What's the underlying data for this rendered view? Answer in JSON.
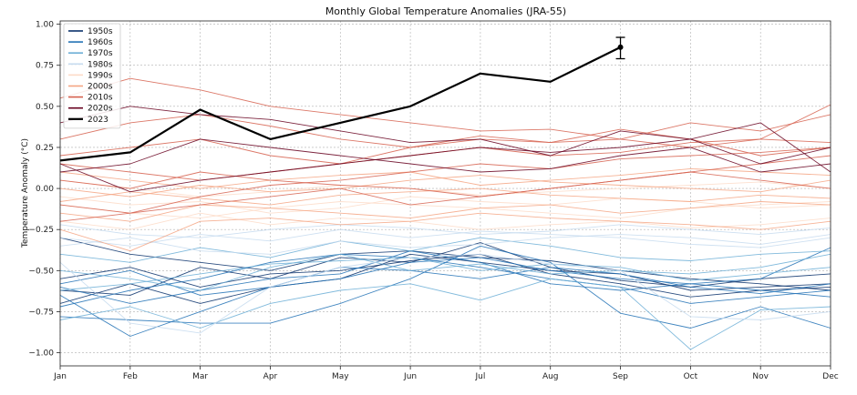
{
  "chart_data": {
    "type": "line",
    "title": "Monthly Global Temperature Anomalies (JRA-55)",
    "xlabel": "",
    "ylabel": "Temperature Anomaly (°C)",
    "categories": [
      "Jan",
      "Feb",
      "Mar",
      "Apr",
      "May",
      "Jun",
      "Jul",
      "Aug",
      "Sep",
      "Oct",
      "Nov",
      "Dec"
    ],
    "ylim": [
      -1.08,
      1.02
    ],
    "yticks": [
      -1.0,
      -0.75,
      -0.5,
      -0.25,
      0.0,
      0.25,
      0.5,
      0.75,
      1.0
    ],
    "ytick_labels": [
      "−1.00",
      "−0.75",
      "−0.50",
      "−0.25",
      "0.00",
      "0.25",
      "0.50",
      "0.75",
      "1.00"
    ],
    "grid": true,
    "legend_position": "top-left",
    "legend": [
      {
        "label": "1950s",
        "color": "#08306b"
      },
      {
        "label": "1960s",
        "color": "#2171b5"
      },
      {
        "label": "1970s",
        "color": "#6baed6"
      },
      {
        "label": "1980s",
        "color": "#c6dbef"
      },
      {
        "label": "1990s",
        "color": "#fddbc7"
      },
      {
        "label": "2000s",
        "color": "#f4a582"
      },
      {
        "label": "2010s",
        "color": "#d6604d"
      },
      {
        "label": "2020s",
        "color": "#67001f"
      },
      {
        "label": "2023",
        "color": "#000000"
      }
    ],
    "series": [
      {
        "name": "1950s",
        "color": "#08306b",
        "values": [
          -0.62,
          -0.65,
          -0.48,
          -0.55,
          -0.42,
          -0.45,
          -0.33,
          -0.48,
          -0.56,
          -0.6,
          -0.55,
          -0.52
        ]
      },
      {
        "name": "1950s",
        "color": "#08306b",
        "values": [
          -0.7,
          -0.58,
          -0.7,
          -0.6,
          -0.55,
          -0.4,
          -0.45,
          -0.5,
          -0.52,
          -0.62,
          -0.6,
          -0.58
        ]
      },
      {
        "name": "1950s",
        "color": "#08306b",
        "values": [
          -0.3,
          -0.4,
          -0.45,
          -0.5,
          -0.4,
          -0.38,
          -0.42,
          -0.44,
          -0.5,
          -0.55,
          -0.58,
          -0.62
        ]
      },
      {
        "name": "1950s",
        "color": "#08306b",
        "values": [
          -0.55,
          -0.48,
          -0.6,
          -0.52,
          -0.5,
          -0.44,
          -0.4,
          -0.52,
          -0.58,
          -0.66,
          -0.62,
          -0.6
        ]
      },
      {
        "name": "1960s",
        "color": "#2171b5",
        "values": [
          -0.65,
          -0.9,
          -0.75,
          -0.6,
          -0.55,
          -0.45,
          -0.42,
          -0.5,
          -0.55,
          -0.58,
          -0.62,
          -0.66
        ]
      },
      {
        "name": "1960s",
        "color": "#2171b5",
        "values": [
          -0.72,
          -0.62,
          -0.55,
          -0.45,
          -0.4,
          -0.42,
          -0.48,
          -0.55,
          -0.6,
          -0.7,
          -0.66,
          -0.62
        ]
      },
      {
        "name": "1960s",
        "color": "#2171b5",
        "values": [
          -0.78,
          -0.8,
          -0.82,
          -0.82,
          -0.7,
          -0.55,
          -0.35,
          -0.45,
          -0.76,
          -0.85,
          -0.72,
          -0.85
        ]
      },
      {
        "name": "1960s",
        "color": "#2171b5",
        "values": [
          -0.58,
          -0.5,
          -0.65,
          -0.6,
          -0.48,
          -0.5,
          -0.55,
          -0.48,
          -0.52,
          -0.6,
          -0.64,
          -0.58
        ]
      },
      {
        "name": "1960s",
        "color": "#2171b5",
        "values": [
          -0.6,
          -0.7,
          -0.62,
          -0.55,
          -0.52,
          -0.38,
          -0.45,
          -0.58,
          -0.62,
          -0.58,
          -0.55,
          -0.36
        ]
      },
      {
        "name": "1970s",
        "color": "#6baed6",
        "values": [
          -0.8,
          -0.72,
          -0.85,
          -0.7,
          -0.62,
          -0.58,
          -0.68,
          -0.55,
          -0.6,
          -0.98,
          -0.74,
          -0.72
        ]
      },
      {
        "name": "1970s",
        "color": "#6baed6",
        "values": [
          -0.5,
          -0.55,
          -0.62,
          -0.48,
          -0.4,
          -0.5,
          -0.46,
          -0.52,
          -0.5,
          -0.52,
          -0.48,
          -0.4
        ]
      },
      {
        "name": "1970s",
        "color": "#6baed6",
        "values": [
          -0.4,
          -0.45,
          -0.36,
          -0.42,
          -0.32,
          -0.38,
          -0.3,
          -0.35,
          -0.42,
          -0.44,
          -0.4,
          -0.38
        ]
      },
      {
        "name": "1970s",
        "color": "#6baed6",
        "values": [
          -0.62,
          -0.58,
          -0.52,
          -0.46,
          -0.44,
          -0.42,
          -0.5,
          -0.46,
          -0.48,
          -0.56,
          -0.52,
          -0.48
        ]
      },
      {
        "name": "1980s",
        "color": "#c6dbef",
        "values": [
          -0.3,
          -0.35,
          -0.28,
          -0.32,
          -0.25,
          -0.3,
          -0.26,
          -0.28,
          -0.3,
          -0.34,
          -0.36,
          -0.3
        ]
      },
      {
        "name": "1980s",
        "color": "#c6dbef",
        "values": [
          -0.45,
          -0.82,
          -0.88,
          -0.6,
          -0.48,
          -0.42,
          -0.4,
          -0.46,
          -0.5,
          -0.78,
          -0.8,
          -0.75
        ]
      },
      {
        "name": "1980s",
        "color": "#c6dbef",
        "values": [
          -0.22,
          -0.28,
          -0.3,
          -0.25,
          -0.22,
          -0.24,
          -0.28,
          -0.26,
          -0.22,
          -0.25,
          -0.28,
          -0.24
        ]
      },
      {
        "name": "1980s",
        "color": "#c6dbef",
        "values": [
          -0.35,
          -0.3,
          -0.38,
          -0.4,
          -0.32,
          -0.36,
          -0.34,
          -0.3,
          -0.28,
          -0.3,
          -0.34,
          -0.28
        ]
      },
      {
        "name": "1990s",
        "color": "#fddbc7",
        "values": [
          -0.1,
          -0.15,
          -0.18,
          -0.12,
          -0.08,
          -0.1,
          -0.12,
          -0.15,
          -0.18,
          -0.12,
          -0.1,
          -0.08
        ]
      },
      {
        "name": "1990s",
        "color": "#fddbc7",
        "values": [
          -0.2,
          -0.25,
          -0.15,
          -0.22,
          -0.18,
          -0.2,
          -0.25,
          -0.22,
          -0.2,
          -0.24,
          -0.22,
          -0.18
        ]
      },
      {
        "name": "1990s",
        "color": "#fddbc7",
        "values": [
          0.05,
          0.0,
          -0.05,
          -0.02,
          0.02,
          0.0,
          -0.04,
          -0.02,
          0.0,
          0.02,
          0.04,
          0.0
        ]
      },
      {
        "name": "1990s",
        "color": "#fddbc7",
        "values": [
          -0.05,
          -0.1,
          -0.08,
          -0.15,
          -0.12,
          -0.05,
          -0.08,
          -0.1,
          -0.06,
          -0.08,
          -0.12,
          -0.1
        ]
      },
      {
        "name": "2000s",
        "color": "#f4a582",
        "values": [
          0.1,
          0.05,
          0.0,
          0.05,
          0.08,
          0.1,
          0.02,
          0.05,
          0.08,
          0.12,
          0.1,
          0.08
        ]
      },
      {
        "name": "2000s",
        "color": "#f4a582",
        "values": [
          -0.15,
          -0.2,
          -0.1,
          -0.12,
          -0.15,
          -0.18,
          -0.12,
          -0.1,
          -0.15,
          -0.12,
          -0.08,
          -0.1
        ]
      },
      {
        "name": "2000s",
        "color": "#f4a582",
        "values": [
          -0.25,
          -0.38,
          -0.2,
          -0.18,
          -0.22,
          -0.2,
          -0.15,
          -0.18,
          -0.2,
          -0.22,
          -0.25,
          -0.2
        ]
      },
      {
        "name": "2000s",
        "color": "#f4a582",
        "values": [
          0.0,
          -0.05,
          0.02,
          -0.02,
          0.0,
          0.05,
          0.08,
          0.04,
          0.02,
          0.0,
          -0.02,
          0.05
        ]
      },
      {
        "name": "2000s",
        "color": "#f4a582",
        "values": [
          -0.08,
          -0.02,
          -0.06,
          -0.1,
          -0.04,
          -0.02,
          0.0,
          -0.04,
          -0.06,
          -0.08,
          -0.04,
          -0.06
        ]
      },
      {
        "name": "2010s",
        "color": "#d6604d",
        "values": [
          0.3,
          0.4,
          0.45,
          0.38,
          0.3,
          0.25,
          0.32,
          0.28,
          0.3,
          0.4,
          0.35,
          0.45
        ]
      },
      {
        "name": "2010s",
        "color": "#d6604d",
        "values": [
          0.55,
          0.67,
          0.6,
          0.5,
          0.45,
          0.4,
          0.35,
          0.36,
          0.3,
          0.25,
          0.3,
          0.28
        ]
      },
      {
        "name": "2010s",
        "color": "#d6604d",
        "values": [
          0.15,
          0.1,
          0.05,
          0.1,
          0.15,
          0.2,
          0.25,
          0.2,
          0.22,
          0.28,
          0.3,
          0.51
        ]
      },
      {
        "name": "2010s",
        "color": "#d6604d",
        "values": [
          -0.1,
          -0.15,
          -0.05,
          0.02,
          0.05,
          0.1,
          0.15,
          0.12,
          0.18,
          0.2,
          0.22,
          0.25
        ]
      },
      {
        "name": "2010s",
        "color": "#d6604d",
        "values": [
          0.05,
          0.0,
          0.1,
          0.05,
          0.02,
          0.0,
          -0.05,
          0.0,
          0.05,
          0.1,
          0.15,
          0.2
        ]
      },
      {
        "name": "2010s",
        "color": "#d6604d",
        "values": [
          0.2,
          0.25,
          0.3,
          0.2,
          0.15,
          0.25,
          0.3,
          0.28,
          0.36,
          0.3,
          0.2,
          0.25
        ]
      },
      {
        "name": "2010s",
        "color": "#d6604d",
        "values": [
          -0.2,
          -0.15,
          -0.1,
          -0.05,
          0.0,
          -0.1,
          -0.05,
          0.0,
          0.05,
          0.1,
          0.05,
          0.0
        ]
      },
      {
        "name": "2020s",
        "color": "#67001f",
        "values": [
          0.4,
          0.5,
          0.45,
          0.42,
          0.35,
          0.28,
          0.3,
          0.2,
          0.35,
          0.3,
          0.15,
          0.25
        ]
      },
      {
        "name": "2020s",
        "color": "#67001f",
        "values": [
          0.15,
          -0.02,
          0.05,
          0.1,
          0.15,
          0.2,
          0.25,
          0.22,
          0.25,
          0.3,
          0.4,
          0.1
        ]
      },
      {
        "name": "2020s",
        "color": "#67001f",
        "values": [
          0.1,
          0.15,
          0.3,
          0.25,
          0.2,
          0.15,
          0.1,
          0.12,
          0.2,
          0.25,
          0.1,
          0.15
        ]
      },
      {
        "name": "2023",
        "color": "#000000",
        "values": [
          0.17,
          0.22,
          0.48,
          0.3,
          0.4,
          0.5,
          0.7,
          0.65,
          0.86,
          null,
          null,
          null
        ],
        "error": {
          "month": "Sep",
          "lower": 0.79,
          "upper": 0.92
        }
      }
    ]
  }
}
